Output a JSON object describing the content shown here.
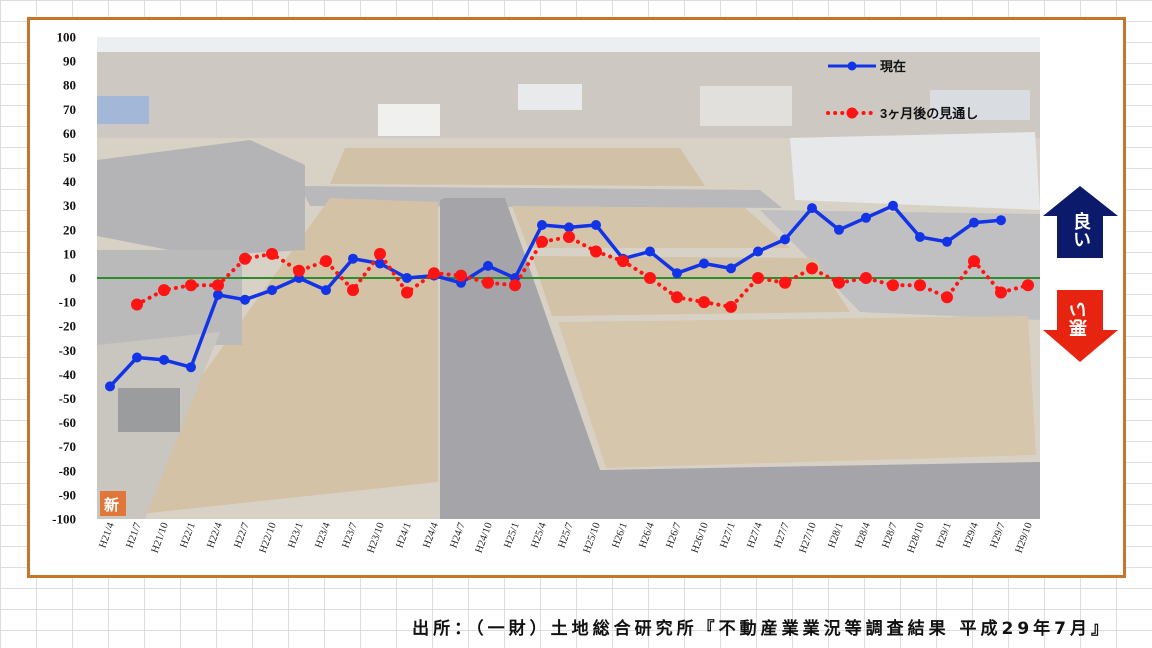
{
  "chart_data": {
    "type": "line",
    "categories": [
      "H21/4",
      "H21/7",
      "H21/10",
      "H22/1",
      "H22/4",
      "H22/7",
      "H22/10",
      "H23/1",
      "H23/4",
      "H23/7",
      "H23/10",
      "H24/1",
      "H24/4",
      "H24/7",
      "H24/10",
      "H25/1",
      "H25/4",
      "H25/7",
      "H25/10",
      "H26/1",
      "H26/4",
      "H26/7",
      "H26/10",
      "H27/1",
      "H27/4",
      "H27/7",
      "H27/10",
      "H28/1",
      "H28/4",
      "H28/7",
      "H28/10",
      "H29/1",
      "H29/4",
      "H29/7",
      "H29/10"
    ],
    "series": [
      {
        "name": "現在",
        "color": "#1234e6",
        "line_style": "solid",
        "marker": "circle",
        "values": [
          -45,
          -33,
          -34,
          -37,
          -7,
          -9,
          -5,
          0,
          -5,
          8,
          6,
          0,
          1,
          -2,
          5,
          0,
          22,
          21,
          22,
          8,
          11,
          2,
          6,
          4,
          11,
          16,
          29,
          20,
          25,
          30,
          17,
          15,
          23,
          24,
          null
        ]
      },
      {
        "name": "3ヶ月後の見通し",
        "color": "#ff1414",
        "line_style": "dotted",
        "marker": "circle",
        "values": [
          null,
          -11,
          -5,
          -3,
          -3,
          8,
          10,
          3,
          7,
          -5,
          10,
          -6,
          2,
          1,
          -2,
          -3,
          15,
          17,
          11,
          7,
          0,
          -8,
          -10,
          -12,
          0,
          -2,
          4,
          -2,
          0,
          -3,
          -3,
          -8,
          7,
          -6,
          -3
        ]
      }
    ],
    "ylim": [
      -100,
      100
    ],
    "yticks": [
      100,
      90,
      80,
      70,
      60,
      50,
      40,
      30,
      20,
      10,
      0,
      -10,
      -20,
      -30,
      -40,
      -50,
      -60,
      -70,
      -80,
      -90,
      -100
    ],
    "zero_line": true,
    "zero_line_color": "#2e8b2e",
    "grid": false,
    "legend_position": "top-right"
  },
  "indicators": {
    "up_label": "良い",
    "up_color": "#0c1a6b",
    "down_label": "悪い",
    "down_color": "#e62410"
  },
  "photo_badge": "新",
  "source_caption": "出所：（一財）土地総合研究所『不動産業業況等調査結果 平成29年7月』",
  "colors": {
    "frame": "#c7742c",
    "badge": "#e0763a"
  }
}
